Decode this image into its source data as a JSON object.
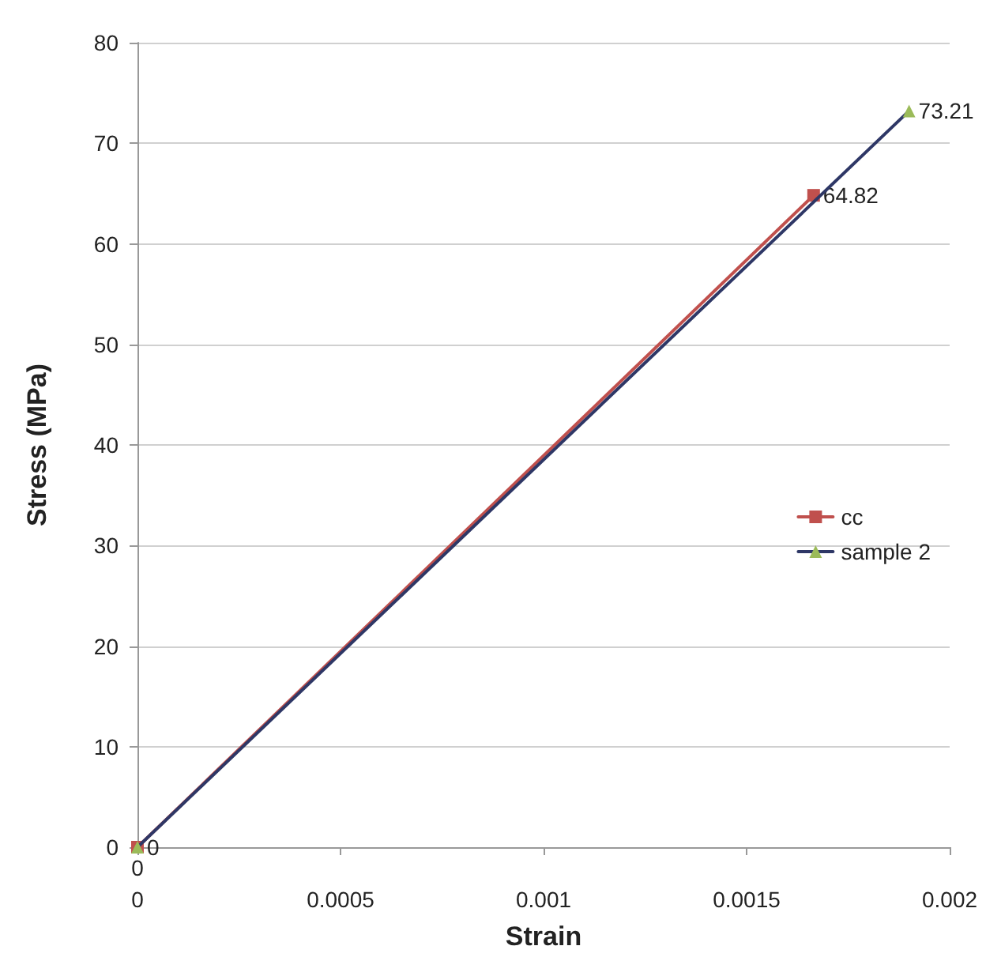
{
  "chart_data": {
    "type": "line",
    "xlabel": "Strain",
    "ylabel": "Stress (MPa)",
    "series": [
      {
        "name": "cc",
        "color": "#c0504d",
        "x": [
          0,
          0.001665
        ],
        "values": [
          0,
          64.82
        ],
        "marker": "square",
        "value_labels": [
          "0",
          "64.82"
        ]
      },
      {
        "name": "sample 2",
        "color": "#2e3766",
        "colors": [
          "#9bbb59",
          "#9bbb59"
        ],
        "x": [
          0,
          0.0019
        ],
        "values": [
          0,
          73.21
        ],
        "marker": "triangle",
        "value_labels": [
          "0",
          "73.21"
        ]
      }
    ],
    "xlim": [
      0,
      0.002
    ],
    "xticks": [
      0,
      0.0005,
      0.001,
      0.0015,
      0.002
    ],
    "ylim": [
      0,
      80
    ],
    "yticks": [
      0,
      10,
      20,
      30,
      40,
      50,
      60,
      70,
      80
    ],
    "grid": "y",
    "legend": "right",
    "line_style": "solid"
  }
}
